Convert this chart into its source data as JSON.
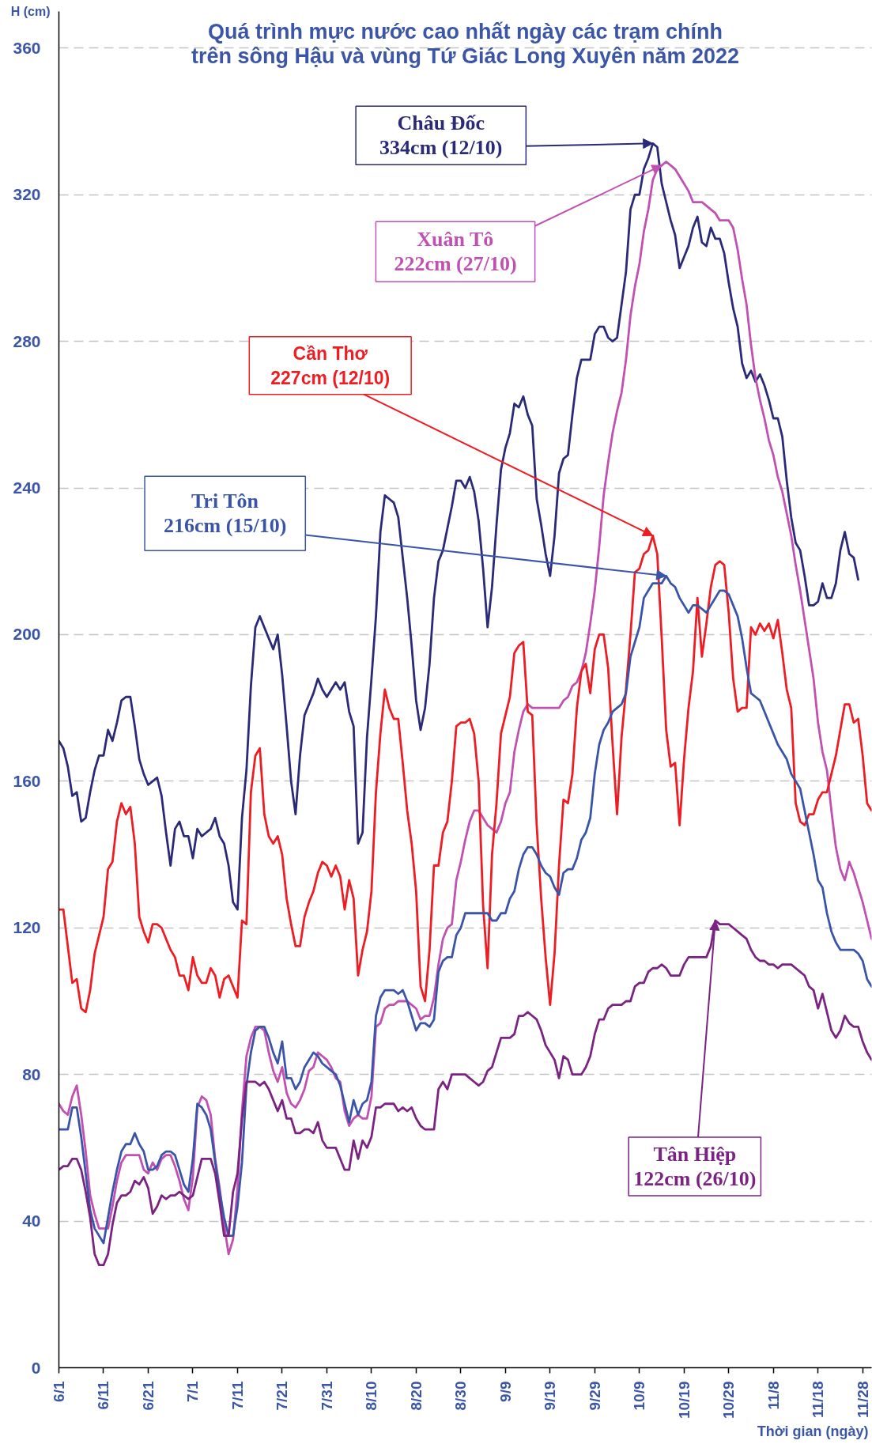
{
  "chart_data": {
    "type": "line",
    "title": "Quá trình mực nước cao nhất ngày các trạm chính\ntrên sông Hậu và vùng Tứ Giác Long Xuyên năm 2022",
    "xlabel": "Thời gian (ngày)",
    "ylabel": "H (cm)",
    "xlim": [
      "2022-06-01",
      "2022-11-30"
    ],
    "ylim": [
      0,
      370
    ],
    "xticks": [
      {
        "value": "2022-06-01",
        "label": "6/1"
      },
      {
        "value": "2022-06-11",
        "label": "6/11"
      },
      {
        "value": "2022-06-21",
        "label": "6/21"
      },
      {
        "value": "2022-07-01",
        "label": "7/1"
      },
      {
        "value": "2022-07-11",
        "label": "7/11"
      },
      {
        "value": "2022-07-21",
        "label": "7/21"
      },
      {
        "value": "2022-07-31",
        "label": "7/31"
      },
      {
        "value": "2022-08-10",
        "label": "8/10"
      },
      {
        "value": "2022-08-20",
        "label": "8/20"
      },
      {
        "value": "2022-08-30",
        "label": "8/30"
      },
      {
        "value": "2022-09-09",
        "label": "9/9"
      },
      {
        "value": "2022-09-19",
        "label": "9/19"
      },
      {
        "value": "2022-09-29",
        "label": "9/29"
      },
      {
        "value": "2022-10-09",
        "label": "10/9"
      },
      {
        "value": "2022-10-19",
        "label": "10/19"
      },
      {
        "value": "2022-10-29",
        "label": "10/29"
      },
      {
        "value": "2022-11-08",
        "label": "11/8"
      },
      {
        "value": "2022-11-18",
        "label": "11/18"
      },
      {
        "value": "2022-11-28",
        "label": "11/28"
      }
    ],
    "yticks": [
      0,
      40,
      80,
      120,
      160,
      200,
      240,
      280,
      320,
      360
    ],
    "grid": "y",
    "x": [
      "2022-06-01",
      "2022-06-02",
      "2022-06-03",
      "2022-06-04",
      "2022-06-05",
      "2022-06-06",
      "2022-06-07",
      "2022-06-08",
      "2022-06-09",
      "2022-06-10",
      "2022-06-11",
      "2022-06-12",
      "2022-06-13",
      "2022-06-14",
      "2022-06-15",
      "2022-06-16",
      "2022-06-17",
      "2022-06-18",
      "2022-06-19",
      "2022-06-20",
      "2022-06-21",
      "2022-06-22",
      "2022-06-23",
      "2022-06-24",
      "2022-06-25",
      "2022-06-26",
      "2022-06-27",
      "2022-06-28",
      "2022-06-29",
      "2022-06-30",
      "2022-07-01",
      "2022-07-02",
      "2022-07-03",
      "2022-07-04",
      "2022-07-05",
      "2022-07-06",
      "2022-07-07",
      "2022-07-08",
      "2022-07-09",
      "2022-07-10",
      "2022-07-11",
      "2022-07-12",
      "2022-07-13",
      "2022-07-14",
      "2022-07-15",
      "2022-07-16",
      "2022-07-17",
      "2022-07-18",
      "2022-07-19",
      "2022-07-20",
      "2022-07-21",
      "2022-07-22",
      "2022-07-23",
      "2022-07-24",
      "2022-07-25",
      "2022-07-26",
      "2022-07-27",
      "2022-07-28",
      "2022-07-29",
      "2022-07-30",
      "2022-07-31",
      "2022-08-01",
      "2022-08-02",
      "2022-08-03",
      "2022-08-04",
      "2022-08-05",
      "2022-08-06",
      "2022-08-07",
      "2022-08-08",
      "2022-08-09",
      "2022-08-10",
      "2022-08-11",
      "2022-08-12",
      "2022-08-13",
      "2022-08-14",
      "2022-08-15",
      "2022-08-16",
      "2022-08-17",
      "2022-08-18",
      "2022-08-19",
      "2022-08-20",
      "2022-08-21",
      "2022-08-22",
      "2022-08-23",
      "2022-08-24",
      "2022-08-25",
      "2022-08-26",
      "2022-08-27",
      "2022-08-28",
      "2022-08-29",
      "2022-08-30",
      "2022-08-31",
      "2022-09-01",
      "2022-09-02",
      "2022-09-03",
      "2022-09-04",
      "2022-09-05",
      "2022-09-06",
      "2022-09-07",
      "2022-09-08",
      "2022-09-09",
      "2022-09-10",
      "2022-09-11",
      "2022-09-12",
      "2022-09-13",
      "2022-09-14",
      "2022-09-15",
      "2022-09-16",
      "2022-09-17",
      "2022-09-18",
      "2022-09-19",
      "2022-09-20",
      "2022-09-21",
      "2022-09-22",
      "2022-09-23",
      "2022-09-24",
      "2022-09-25",
      "2022-09-26",
      "2022-09-27",
      "2022-09-28",
      "2022-09-29",
      "2022-09-30",
      "2022-10-01",
      "2022-10-02",
      "2022-10-03",
      "2022-10-04",
      "2022-10-05",
      "2022-10-06",
      "2022-10-07",
      "2022-10-08",
      "2022-10-09",
      "2022-10-10",
      "2022-10-11",
      "2022-10-12",
      "2022-10-13",
      "2022-10-14",
      "2022-10-15",
      "2022-10-16",
      "2022-10-17",
      "2022-10-18",
      "2022-10-19",
      "2022-10-20",
      "2022-10-21",
      "2022-10-22",
      "2022-10-23",
      "2022-10-24",
      "2022-10-25",
      "2022-10-26",
      "2022-10-27",
      "2022-10-28",
      "2022-10-29",
      "2022-10-30",
      "2022-10-31",
      "2022-11-01",
      "2022-11-02",
      "2022-11-03",
      "2022-11-04",
      "2022-11-05",
      "2022-11-06",
      "2022-11-07",
      "2022-11-08",
      "2022-11-09",
      "2022-11-10",
      "2022-11-11",
      "2022-11-12",
      "2022-11-13",
      "2022-11-14",
      "2022-11-15",
      "2022-11-16",
      "2022-11-17",
      "2022-11-18",
      "2022-11-19",
      "2022-11-20",
      "2022-11-21",
      "2022-11-22",
      "2022-11-23",
      "2022-11-24",
      "2022-11-25",
      "2022-11-26",
      "2022-11-27",
      "2022-11-28",
      "2022-11-29",
      "2022-11-30"
    ],
    "series": [
      {
        "name": "Châu Đốc",
        "color": "#2b2a78",
        "values": [
          171,
          169,
          164,
          156,
          157,
          149,
          150,
          157,
          163,
          167,
          167,
          174,
          171,
          176,
          182,
          183,
          183,
          175,
          166,
          162,
          159,
          160,
          161,
          156,
          146,
          137,
          147,
          149,
          145,
          145,
          139,
          147,
          145,
          146,
          147,
          150,
          145,
          143,
          137,
          127,
          125,
          150,
          163,
          186,
          202,
          205,
          202,
          199,
          196,
          200,
          189,
          175,
          160,
          151,
          167,
          178,
          181,
          184,
          188,
          185,
          183,
          185,
          187,
          185,
          187,
          179,
          175,
          143,
          146,
          172,
          188,
          205,
          228,
          238,
          237,
          236,
          232,
          221,
          210,
          197,
          182,
          174,
          180,
          192,
          210,
          220,
          223,
          229,
          235,
          242,
          242,
          240,
          243,
          239,
          231,
          218,
          202,
          213,
          230,
          245,
          251,
          255,
          263,
          262,
          265,
          260,
          257,
          237,
          230,
          222,
          216,
          227,
          244,
          248,
          249,
          260,
          270,
          275,
          275,
          275,
          282,
          284,
          284,
          281,
          280,
          281,
          290,
          299,
          316,
          320,
          320,
          327,
          330,
          334,
          333,
          323,
          318,
          313,
          309,
          300,
          303,
          306,
          311,
          314,
          307,
          306,
          311,
          308,
          308,
          304,
          296,
          289,
          284,
          274,
          270,
          272,
          269,
          271,
          268,
          264,
          259,
          259,
          254,
          242,
          232,
          225,
          223,
          216,
          208,
          208,
          209,
          214,
          210,
          210,
          214,
          223,
          228,
          222,
          221,
          215,
          null,
          null,
          null
        ]
      },
      {
        "name": "Xuân Tô",
        "color": "#c050b2",
        "values": [
          72,
          70,
          69,
          74,
          77,
          69,
          59,
          47,
          42,
          38,
          38,
          38,
          44,
          51,
          56,
          58,
          58,
          58,
          58,
          54,
          53,
          56,
          54,
          57,
          58,
          58,
          55,
          51,
          46,
          43,
          52,
          71,
          74,
          73,
          69,
          57,
          49,
          39,
          31,
          35,
          49,
          70,
          85,
          90,
          93,
          93,
          92,
          86,
          81,
          78,
          82,
          75,
          72,
          71,
          73,
          76,
          81,
          82,
          86,
          85,
          84,
          82,
          79,
          78,
          70,
          66,
          68,
          69,
          68,
          68,
          74,
          93,
          94,
          98,
          99,
          99,
          100,
          100,
          100,
          99,
          98,
          95,
          96,
          96,
          101,
          110,
          117,
          120,
          121,
          133,
          138,
          144,
          149,
          152,
          152,
          150,
          148,
          147,
          146,
          149,
          154,
          157,
          168,
          174,
          179,
          181,
          180,
          180,
          180,
          180,
          180,
          180,
          180,
          182,
          183,
          186,
          187,
          190,
          195,
          203,
          212,
          224,
          238,
          247,
          255,
          261,
          266,
          275,
          287,
          295,
          301,
          310,
          316,
          324,
          327,
          328,
          329,
          328,
          327,
          325,
          323,
          321,
          318,
          318,
          318,
          317,
          316,
          315,
          313,
          313,
          313,
          311,
          305,
          297,
          290,
          279,
          270,
          264,
          259,
          253,
          249,
          243,
          239,
          233,
          227,
          219,
          212,
          204,
          196,
          188,
          176,
          168,
          163,
          152,
          142,
          136,
          133,
          138,
          135,
          131,
          127,
          122,
          117
        ]
      },
      {
        "name": "Cần Thơ",
        "color": "#ee1d24",
        "values": [
          125,
          125,
          115,
          105,
          106,
          98,
          97,
          103,
          113,
          118,
          123,
          136,
          138,
          149,
          154,
          151,
          153,
          143,
          123,
          119,
          116,
          121,
          121,
          120,
          117,
          114,
          112,
          107,
          107,
          103,
          112,
          107,
          105,
          105,
          109,
          107,
          101,
          106,
          107,
          104,
          101,
          122,
          121,
          157,
          167,
          169,
          151,
          145,
          143,
          145,
          140,
          128,
          121,
          115,
          115,
          123,
          127,
          130,
          135,
          138,
          137,
          134,
          137,
          134,
          125,
          133,
          128,
          107,
          114,
          119,
          130,
          157,
          173,
          185,
          180,
          177,
          177,
          165,
          152,
          143,
          130,
          104,
          100,
          114,
          137,
          137,
          146,
          149,
          160,
          175,
          176,
          176,
          177,
          173,
          160,
          126,
          109,
          140,
          154,
          173,
          178,
          183,
          195,
          197,
          198,
          179,
          178,
          148,
          128,
          112,
          99,
          113,
          137,
          155,
          154,
          162,
          180,
          190,
          192,
          184,
          196,
          200,
          200,
          191,
          170,
          151,
          172,
          185,
          200,
          217,
          218,
          222,
          223,
          227,
          222,
          199,
          174,
          164,
          165,
          148,
          166,
          180,
          190,
          210,
          194,
          203,
          213,
          219,
          220,
          219,
          206,
          188,
          179,
          180,
          180,
          202,
          200,
          203,
          201,
          203,
          199,
          204,
          195,
          185,
          180,
          154,
          149,
          148,
          151,
          151,
          155,
          157,
          157,
          162,
          167,
          174,
          181,
          181,
          176,
          177,
          167,
          154,
          152
        ]
      },
      {
        "name": "Tri Tôn",
        "color": "#3a55a8",
        "values": [
          65,
          65,
          65,
          71,
          71,
          63,
          53,
          43,
          38,
          36,
          34,
          41,
          48,
          54,
          59,
          61,
          61,
          64,
          61,
          59,
          54,
          54,
          55,
          58,
          59,
          59,
          58,
          54,
          50,
          48,
          57,
          72,
          71,
          69,
          65,
          56,
          48,
          41,
          36,
          36,
          44,
          56,
          77,
          86,
          92,
          93,
          93,
          90,
          86,
          83,
          89,
          79,
          79,
          76,
          78,
          82,
          84,
          86,
          85,
          83,
          82,
          81,
          80,
          77,
          72,
          67,
          73,
          69,
          72,
          73,
          78,
          96,
          101,
          103,
          103,
          103,
          102,
          103,
          100,
          96,
          92,
          94,
          94,
          93,
          95,
          108,
          111,
          112,
          112,
          118,
          120,
          124,
          124,
          124,
          124,
          124,
          124,
          122,
          122,
          124,
          124,
          128,
          130,
          136,
          140,
          142,
          142,
          140,
          137,
          135,
          134,
          131,
          129,
          135,
          136,
          136,
          139,
          144,
          146,
          150,
          162,
          170,
          174,
          176,
          179,
          180,
          181,
          184,
          194,
          198,
          202,
          210,
          212,
          214,
          214,
          214,
          216,
          214,
          213,
          210,
          208,
          206,
          208,
          208,
          207,
          206,
          208,
          210,
          212,
          212,
          211,
          208,
          205,
          199,
          191,
          184,
          183,
          182,
          179,
          176,
          173,
          170,
          168,
          166,
          162,
          160,
          158,
          152,
          146,
          140,
          133,
          131,
          124,
          119,
          116,
          114,
          114,
          114,
          114,
          113,
          111,
          106,
          104
        ]
      },
      {
        "name": "Tân Hiệp",
        "color": "#7b2382",
        "values": [
          54,
          55,
          55,
          57,
          57,
          54,
          48,
          41,
          31,
          28,
          28,
          31,
          39,
          45,
          47,
          47,
          48,
          51,
          50,
          52,
          49,
          42,
          44,
          47,
          46,
          47,
          47,
          48,
          47,
          46,
          47,
          52,
          57,
          57,
          57,
          53,
          45,
          36,
          36,
          48,
          53,
          68,
          78,
          78,
          78,
          77,
          78,
          76,
          73,
          70,
          73,
          68,
          68,
          64,
          64,
          65,
          65,
          64,
          67,
          62,
          60,
          60,
          60,
          57,
          54,
          54,
          62,
          57,
          62,
          60,
          63,
          71,
          71,
          72,
          72,
          72,
          70,
          71,
          70,
          71,
          68,
          66,
          65,
          65,
          65,
          76,
          78,
          76,
          80,
          80,
          80,
          80,
          79,
          78,
          77,
          78,
          81,
          82,
          86,
          90,
          90,
          90,
          91,
          96,
          96,
          97,
          96,
          95,
          92,
          88,
          86,
          84,
          79,
          85,
          84,
          80,
          80,
          80,
          82,
          85,
          91,
          95,
          95,
          98,
          99,
          99,
          99,
          100,
          100,
          104,
          105,
          105,
          108,
          109,
          109,
          110,
          109,
          107,
          107,
          107,
          110,
          112,
          112,
          112,
          112,
          112,
          115,
          122,
          121,
          121,
          121,
          120,
          119,
          118,
          117,
          114,
          112,
          111,
          111,
          110,
          110,
          109,
          110,
          110,
          110,
          109,
          108,
          107,
          104,
          103,
          98,
          102,
          97,
          92,
          90,
          92,
          96,
          94,
          93,
          93,
          89,
          86,
          84
        ]
      }
    ],
    "annotations": [
      {
        "text": "334cm (12/10)",
        "x": "2022-10-12",
        "y": 334
      },
      {
        "text": "222cm (27/10)",
        "x": "2022-10-14",
        "y": 328
      },
      {
        "text": "227cm (12/10)",
        "x": "2022-10-12",
        "y": 227
      },
      {
        "text": "216cm (15/10)",
        "x": "2022-10-15",
        "y": 216
      },
      {
        "text": "122cm (26/10)",
        "x": "2022-10-26",
        "y": 122
      }
    ]
  }
}
